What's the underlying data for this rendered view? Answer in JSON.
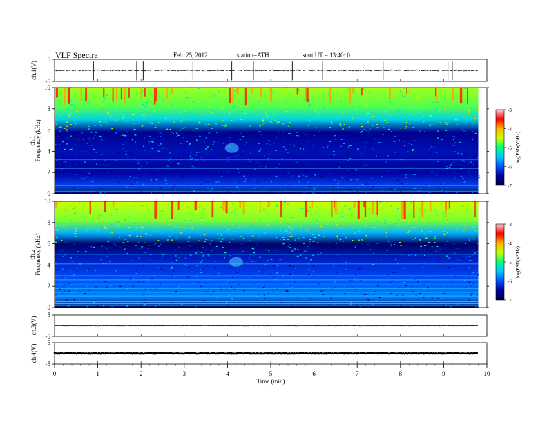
{
  "header": {
    "title": "VLF  Spectra",
    "date": "Feb. 25, 2012",
    "station": "station=ATH",
    "start": "start  UT  =   13:40: 0"
  },
  "colorbar": {
    "label": "log(PSD(V²/Hz)",
    "ticks": [
      "-3",
      "-4",
      "-5",
      "-6",
      "-7"
    ],
    "colors": [
      "#000040",
      "#0000a0",
      "#0050ff",
      "#00c8ff",
      "#00ff80",
      "#c8ff00",
      "#ffb400",
      "#ff0000",
      "#ffd0d0"
    ]
  },
  "chart_data": [
    {
      "type": "line",
      "name": "ch1-waveform",
      "ylabel": "ch.1(V)",
      "ylim": [
        -5,
        5
      ],
      "yticks": [
        "5",
        "-5"
      ],
      "baseline": 0,
      "spikes_t": [
        0.9,
        1.9,
        2.05,
        3.2,
        4.1,
        4.6,
        5.5,
        6.2,
        7.6,
        9.1,
        9.2
      ]
    },
    {
      "type": "heatmap",
      "name": "ch1-spectrogram",
      "ylabel": "ch.1\nFrequency  (kHz)",
      "ylim": [
        0,
        10
      ],
      "yticks": [
        "10",
        "8",
        "6",
        "4",
        "2",
        "0"
      ],
      "zlim": [
        -7,
        -3
      ],
      "features": [
        "broadband sferics 0–10 kHz",
        "strong emission above 6 kHz",
        "narrowband lines below 1 kHz",
        "patch near 4.3 kHz at t≈4.1 min"
      ]
    },
    {
      "type": "heatmap",
      "name": "ch2-spectrogram",
      "ylabel": "ch.2\nFrequency  (kHz)",
      "ylim": [
        0,
        10
      ],
      "yticks": [
        "10",
        "8",
        "6",
        "4",
        "2",
        "0"
      ],
      "zlim": [
        -7,
        -3
      ],
      "features": [
        "broadband sferics 0–10 kHz",
        "strong emission above 6 kHz",
        "narrowband lines below 3 kHz",
        "patch near 4.3 kHz at t≈4.2 min"
      ]
    },
    {
      "type": "line",
      "name": "ch3-waveform",
      "ylabel": "ch.3(V)",
      "ylim": [
        -5,
        5
      ],
      "yticks": [
        "5",
        "-5"
      ],
      "baseline": 0
    },
    {
      "type": "line",
      "name": "ch4-waveform",
      "ylabel": "ch.4(V)",
      "ylim": [
        -5,
        5
      ],
      "yticks": [
        "5",
        "-5"
      ],
      "baseline": 0
    }
  ],
  "xaxis": {
    "label": "Time  (min)",
    "xlim": [
      0,
      10
    ],
    "data_end": 9.8,
    "ticks": [
      "0",
      "1",
      "2",
      "3",
      "4",
      "5",
      "6",
      "7",
      "8",
      "9",
      "10"
    ]
  }
}
